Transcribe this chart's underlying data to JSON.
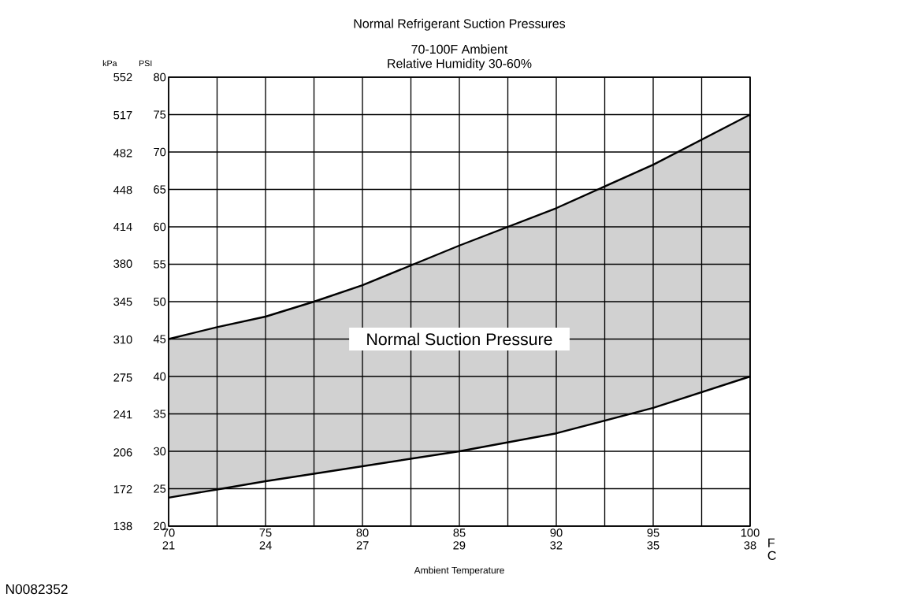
{
  "chart_data": {
    "type": "line",
    "title": "Normal Refrigerant Suction Pressures",
    "subtitle": "70-100F Ambient",
    "xlabel": "Ambient Temperature",
    "ylabel": "PSI",
    "y2label": "kPa",
    "x2label": "C",
    "x": [
      70,
      72.5,
      75,
      77.5,
      80,
      85,
      90,
      95,
      100
    ],
    "series": [
      {
        "color": "#000000",
        "values": [
          23.8,
          24.9,
          26,
          27,
          28,
          30,
          32.4,
          35.8,
          40
        ]
      },
      {
        "color": "#000000",
        "values": [
          45,
          46.6,
          48,
          50,
          52.2,
          57.5,
          62.5,
          68.3,
          75
        ],
        "lower": [
          23.8,
          24.9,
          26,
          27,
          28,
          30,
          32.4,
          35.8,
          40
        ],
        "upper": [
          45,
          46.6,
          48,
          50,
          52.2,
          57.5,
          62.5,
          68.3,
          75
        ]
      }
    ],
    "xlim": [
      70,
      100
    ],
    "ylim": [
      20,
      80
    ],
    "xticks": [
      70,
      {
        "value": 72.5,
        "label": null
      },
      75,
      {
        "value": 77.5,
        "label": null
      },
      80,
      {
        "value": 82.5,
        "label": null
      },
      85,
      {
        "value": 87.5,
        "label": null
      },
      90,
      {
        "value": 92.5,
        "label": null
      },
      95,
      {
        "value": 97.5,
        "label": null
      },
      100
    ],
    "yticks": [
      20,
      25,
      30,
      35,
      40,
      45,
      50,
      55,
      60,
      65,
      70,
      75,
      80
    ],
    "y2lim": [
      138,
      552
    ],
    "y2ticks": [
      138,
      172,
      206,
      241,
      275,
      310,
      345,
      380,
      414,
      448,
      482,
      517,
      552
    ],
    "x2lim": [
      21.11,
      37.78
    ],
    "x2ticks": [
      {
        "value": 21.11,
        "label": "21"
      },
      {
        "value": 23.89,
        "label": "24"
      },
      {
        "value": 26.67,
        "label": "27"
      },
      {
        "value": 29.44,
        "label": "29"
      },
      {
        "value": 32.22,
        "label": "32"
      },
      {
        "value": 35,
        "label": "35"
      },
      {
        "value": 37.78,
        "label": "38"
      }
    ],
    "grid": true,
    "line_style": "solid",
    "marker": "none",
    "annotations": [
      "Normal Suction Pressure",
      "Relative Humidity 30-60%",
      "F",
      "N0082352"
    ]
  }
}
